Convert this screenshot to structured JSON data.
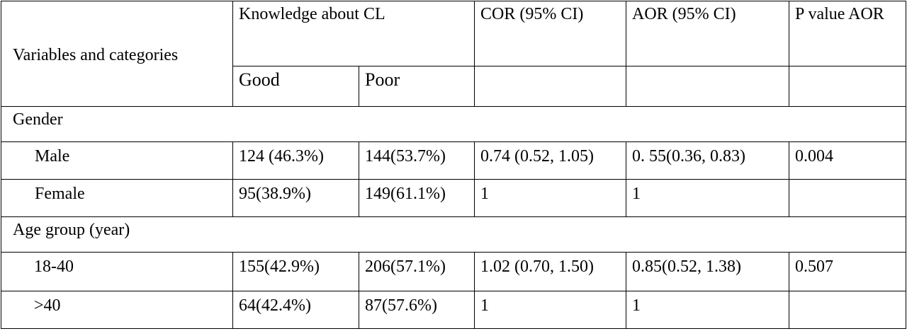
{
  "table": {
    "headers": {
      "variables": "Variables and categories",
      "knowledge": "Knowledge about CL",
      "good": "Good",
      "poor": "Poor",
      "cor": "COR (95% CI)",
      "aor": "AOR (95% CI)",
      "p_value": "P value AOR"
    },
    "groups": [
      {
        "label": "Gender",
        "rows": [
          {
            "category": "Male",
            "good": "124 (46.3%)",
            "poor": "144(53.7%)",
            "cor": "0.74 (0.52, 1.05)",
            "aor": "0. 55(0.36, 0.83)",
            "p": "0.004"
          },
          {
            "category": "Female",
            "good": "95(38.9%)",
            "poor": "149(61.1%)",
            "cor": "1",
            "aor": "1",
            "p": ""
          }
        ]
      },
      {
        "label": "Age group (year)",
        "rows": [
          {
            "category": "18-40",
            "good": "155(42.9%)",
            "poor": "206(57.1%)",
            "cor": "1.02 (0.70, 1.50)",
            "aor": "0.85(0.52, 1.38)",
            "p": "0.507"
          },
          {
            "category": ">40",
            "good": "64(42.4%)",
            "poor": "87(57.6%)",
            "cor": "1",
            "aor": "1",
            "p": ""
          }
        ]
      }
    ]
  }
}
